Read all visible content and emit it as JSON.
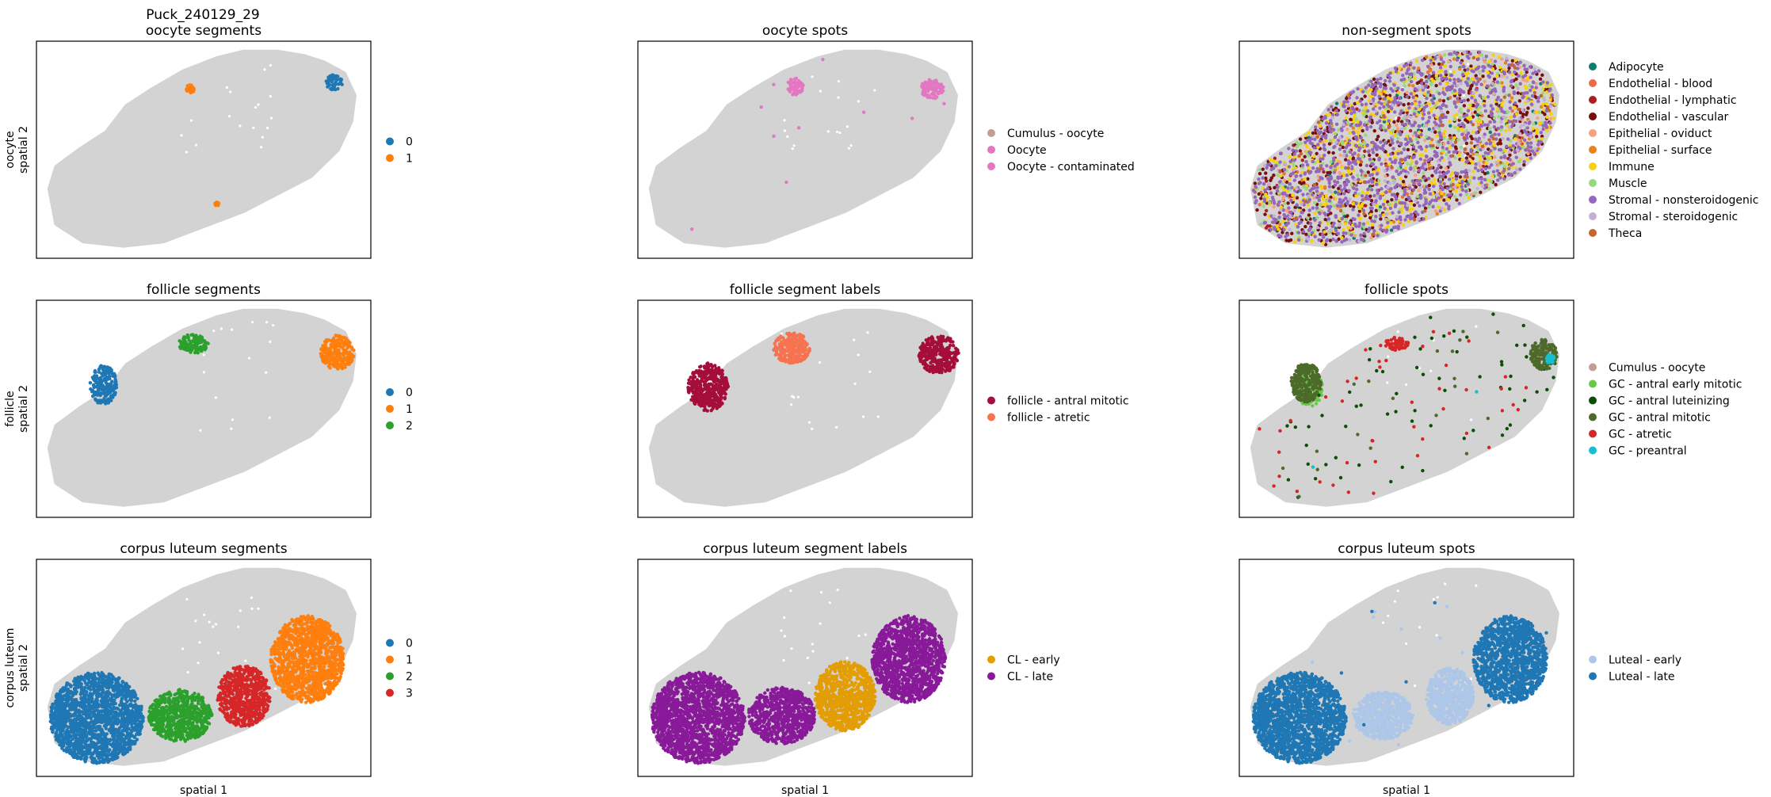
{
  "figure_title": "Puck_240129_29",
  "colors": {
    "background_spot": "#d3d3d3",
    "frame": "#000000"
  },
  "chart_data": [
    {
      "type": "scatter",
      "title": "oocyte segments",
      "xlabel": "",
      "ylabel": "oocyte\nspatial 2",
      "legend": "right",
      "series": [
        {
          "name": "0",
          "color": "#1f77b4",
          "regions": [
            [
              0.89,
              0.19,
              0.025,
              0.035
            ]
          ],
          "scatter": 0
        },
        {
          "name": "1",
          "color": "#ff7f0e",
          "regions": [
            [
              0.46,
              0.22,
              0.012,
              0.02
            ],
            [
              0.54,
              0.75,
              0.006,
              0.008
            ]
          ],
          "scatter": 0
        }
      ]
    },
    {
      "type": "scatter",
      "title": "oocyte spots",
      "xlabel": "",
      "ylabel": "",
      "legend": "right",
      "series": [
        {
          "name": "Cumulus - oocyte",
          "color": "#c49c94",
          "regions": [
            [
              0.89,
              0.2,
              0.015,
              0.02
            ]
          ],
          "scatter": 0
        },
        {
          "name": "Oocyte",
          "color": "#e377c2",
          "regions": [
            [
              0.47,
              0.21,
              0.025,
              0.04
            ],
            [
              0.88,
              0.22,
              0.035,
              0.045
            ]
          ],
          "scatter": 0
        },
        {
          "name": "Oocyte - contaminated",
          "color": "#e377c2",
          "regions": [],
          "scatter": 10
        }
      ]
    },
    {
      "type": "scatter",
      "title": "non-segment spots",
      "xlabel": "",
      "ylabel": "",
      "legend": "right",
      "series": [
        {
          "name": "Adipocyte",
          "color": "#0c7d6f",
          "regions": [],
          "scatter": 60
        },
        {
          "name": "Endothelial - blood",
          "color": "#ed6a47",
          "regions": [],
          "scatter": 60
        },
        {
          "name": "Endothelial - lymphatic",
          "color": "#ad1e1e",
          "regions": [],
          "scatter": 60
        },
        {
          "name": "Endothelial - vascular",
          "color": "#780f0f",
          "regions": [],
          "scatter": 600
        },
        {
          "name": "Epithelial - oviduct",
          "color": "#f5a07f",
          "regions": [],
          "scatter": 120
        },
        {
          "name": "Epithelial - surface",
          "color": "#e8821b",
          "regions": [],
          "scatter": 80
        },
        {
          "name": "Immune",
          "color": "#f7d10f",
          "regions": [],
          "scatter": 550
        },
        {
          "name": "Muscle",
          "color": "#98d87f",
          "regions": [],
          "scatter": 280
        },
        {
          "name": "Stromal - nonsteroidogenic",
          "color": "#9467bd",
          "regions": [],
          "scatter": 1100
        },
        {
          "name": "Stromal - steroidogenic",
          "color": "#c5b0d5",
          "regions": [],
          "scatter": 120
        },
        {
          "name": "Theca",
          "color": "#c8642a",
          "regions": [],
          "scatter": 60
        }
      ]
    },
    {
      "type": "scatter",
      "title": "follicle segments",
      "xlabel": "",
      "ylabel": "follicle\nspatial 2",
      "legend": "right",
      "series": [
        {
          "name": "0",
          "color": "#1f77b4",
          "regions": [
            [
              0.2,
              0.39,
              0.04,
              0.09
            ]
          ],
          "scatter": 0
        },
        {
          "name": "1",
          "color": "#ff7f0e",
          "regions": [
            [
              0.9,
              0.24,
              0.05,
              0.08
            ]
          ],
          "scatter": 0
        },
        {
          "name": "2",
          "color": "#2ca02c",
          "regions": [
            [
              0.47,
              0.2,
              0.045,
              0.045
            ]
          ],
          "scatter": 0
        }
      ]
    },
    {
      "type": "scatter",
      "title": "follicle segment labels",
      "xlabel": "",
      "ylabel": "",
      "legend": "right",
      "series": [
        {
          "name": "follicle - antral mitotic",
          "color": "#a50d3b",
          "regions": [
            [
              0.21,
              0.4,
              0.06,
              0.11
            ],
            [
              0.9,
              0.25,
              0.06,
              0.09
            ]
          ],
          "scatter": 0
        },
        {
          "name": "follicle - atretic",
          "color": "#f7734f",
          "regions": [
            [
              0.46,
              0.22,
              0.055,
              0.07
            ]
          ],
          "scatter": 0
        }
      ]
    },
    {
      "type": "scatter",
      "title": "follicle spots",
      "xlabel": "",
      "ylabel": "",
      "legend": "right",
      "series": [
        {
          "name": "Cumulus - oocyte",
          "color": "#c49c94",
          "regions": [
            [
              0.9,
              0.24,
              0.02,
              0.03
            ]
          ],
          "scatter": 0
        },
        {
          "name": "GC - antral early mitotic",
          "color": "#69c84a",
          "regions": [
            [
              0.21,
              0.41,
              0.04,
              0.08
            ]
          ],
          "scatter": 0
        },
        {
          "name": "GC - antral luteinizing",
          "color": "#0b4f06",
          "regions": [],
          "scatter": 70
        },
        {
          "name": "GC - antral mitotic",
          "color": "#4c6b2a",
          "regions": [
            [
              0.2,
              0.38,
              0.045,
              0.09
            ],
            [
              0.91,
              0.25,
              0.04,
              0.07
            ]
          ],
          "scatter": 20
        },
        {
          "name": "GC - atretic",
          "color": "#d62728",
          "regions": [
            [
              0.47,
              0.2,
              0.035,
              0.03
            ]
          ],
          "scatter": 45
        },
        {
          "name": "GC - preantral",
          "color": "#17becf",
          "regions": [
            [
              0.93,
              0.27,
              0.012,
              0.02
            ]
          ],
          "scatter": 2
        }
      ]
    },
    {
      "type": "scatter",
      "title": "corpus luteum segments",
      "xlabel": "spatial 1",
      "ylabel": "corpus luteum\nspatial 2",
      "legend": "right",
      "series": [
        {
          "name": "0",
          "color": "#1f77b4",
          "regions": [
            [
              0.18,
              0.73,
              0.14,
              0.21
            ]
          ],
          "scatter": 0
        },
        {
          "name": "1",
          "color": "#ff7f0e",
          "regions": [
            [
              0.81,
              0.46,
              0.11,
              0.2
            ]
          ],
          "scatter": 0
        },
        {
          "name": "2",
          "color": "#2ca02c",
          "regions": [
            [
              0.43,
              0.72,
              0.095,
              0.12
            ]
          ],
          "scatter": 0
        },
        {
          "name": "3",
          "color": "#d62728",
          "regions": [
            [
              0.62,
              0.63,
              0.08,
              0.14
            ]
          ],
          "scatter": 0
        }
      ]
    },
    {
      "type": "scatter",
      "title": "corpus luteum segment labels",
      "xlabel": "spatial 1",
      "ylabel": "",
      "legend": "right",
      "series": [
        {
          "name": "CL - early",
          "color": "#e39d05",
          "regions": [
            [
              0.62,
              0.63,
              0.09,
              0.16
            ]
          ],
          "scatter": 0
        },
        {
          "name": "CL - late",
          "color": "#881a99",
          "regions": [
            [
              0.18,
              0.73,
              0.14,
              0.21
            ],
            [
              0.43,
              0.72,
              0.1,
              0.13
            ],
            [
              0.81,
              0.46,
              0.11,
              0.2
            ]
          ],
          "scatter": 0
        }
      ]
    },
    {
      "type": "scatter",
      "title": "corpus luteum spots",
      "xlabel": "spatial 1",
      "ylabel": "",
      "legend": "right",
      "series": [
        {
          "name": "Luteal - early",
          "color": "#aec7e8",
          "regions": [
            [
              0.43,
              0.72,
              0.09,
              0.11
            ],
            [
              0.63,
              0.63,
              0.07,
              0.13
            ]
          ],
          "scatter": 15
        },
        {
          "name": "Luteal - late",
          "color": "#1f77b4",
          "regions": [
            [
              0.18,
              0.73,
              0.14,
              0.21
            ],
            [
              0.81,
              0.46,
              0.11,
              0.2
            ]
          ],
          "scatter": 8
        }
      ]
    }
  ]
}
